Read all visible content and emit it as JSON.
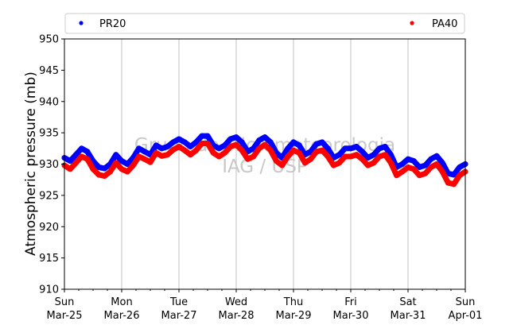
{
  "chart_data": {
    "type": "scatter",
    "xlabel": "",
    "ylabel": "Atmospheric pressure (mb)",
    "ylim": [
      910,
      950
    ],
    "y_ticks": [
      910,
      915,
      920,
      925,
      930,
      935,
      940,
      945,
      950
    ],
    "xlim": [
      0,
      7
    ],
    "x_ticks": [
      {
        "day": "Sun",
        "date": "Mar-25"
      },
      {
        "day": "Mon",
        "date": "Mar-26"
      },
      {
        "day": "Tue",
        "date": "Mar-27"
      },
      {
        "day": "Wed",
        "date": "Mar-28"
      },
      {
        "day": "Thu",
        "date": "Mar-29"
      },
      {
        "day": "Fri",
        "date": "Mar-30"
      },
      {
        "day": "Sat",
        "date": "Mar-31"
      },
      {
        "day": "Sun",
        "date": "Apr-01"
      }
    ],
    "grid": "vertical",
    "legend_position": "top",
    "watermark": [
      "Grupo de Micrometeorologia",
      "IAG / USP"
    ],
    "series": [
      {
        "name": "PR20",
        "color": "#0000ff",
        "x": [
          0.0,
          0.1,
          0.2,
          0.3,
          0.4,
          0.5,
          0.6,
          0.7,
          0.8,
          0.9,
          1.0,
          1.1,
          1.2,
          1.3,
          1.4,
          1.5,
          1.6,
          1.7,
          1.8,
          1.9,
          2.0,
          2.1,
          2.2,
          2.3,
          2.4,
          2.5,
          2.6,
          2.7,
          2.8,
          2.9,
          3.0,
          3.1,
          3.2,
          3.3,
          3.4,
          3.5,
          3.6,
          3.7,
          3.8,
          3.9,
          4.0,
          4.1,
          4.2,
          4.3,
          4.4,
          4.5,
          4.6,
          4.7,
          4.8,
          4.9,
          5.0,
          5.1,
          5.2,
          5.3,
          5.4,
          5.5,
          5.6,
          5.7,
          5.8,
          5.9,
          6.0,
          6.1,
          6.2,
          6.3,
          6.4,
          6.5,
          6.6,
          6.7,
          6.8,
          6.9,
          7.0
        ],
        "values": [
          931.0,
          930.5,
          931.5,
          932.5,
          932.0,
          930.5,
          929.5,
          929.3,
          930.0,
          931.5,
          930.5,
          930.0,
          931.0,
          932.5,
          932.0,
          931.5,
          933.0,
          932.5,
          932.8,
          933.5,
          934.0,
          933.5,
          932.8,
          933.5,
          934.5,
          934.5,
          933.0,
          932.5,
          933.0,
          934.0,
          934.3,
          933.5,
          932.0,
          932.5,
          933.8,
          934.3,
          933.5,
          931.8,
          931.0,
          932.5,
          933.5,
          933.0,
          931.5,
          932.0,
          933.2,
          933.5,
          932.5,
          931.0,
          931.5,
          932.5,
          932.5,
          932.8,
          932.0,
          931.0,
          931.5,
          932.5,
          932.8,
          931.5,
          929.5,
          930.0,
          930.8,
          930.5,
          929.5,
          929.8,
          930.8,
          931.3,
          930.2,
          928.5,
          928.3,
          929.5,
          930.0
        ]
      },
      {
        "name": "PA40",
        "color": "#ff0000",
        "x": [
          0.0,
          0.1,
          0.2,
          0.3,
          0.4,
          0.5,
          0.6,
          0.7,
          0.8,
          0.9,
          1.0,
          1.1,
          1.2,
          1.3,
          1.4,
          1.5,
          1.6,
          1.7,
          1.8,
          1.9,
          2.0,
          2.1,
          2.2,
          2.3,
          2.4,
          2.5,
          2.6,
          2.7,
          2.8,
          2.9,
          3.0,
          3.1,
          3.2,
          3.3,
          3.4,
          3.5,
          3.6,
          3.7,
          3.8,
          3.9,
          4.0,
          4.1,
          4.2,
          4.3,
          4.4,
          4.5,
          4.6,
          4.7,
          4.8,
          4.9,
          5.0,
          5.1,
          5.2,
          5.3,
          5.4,
          5.5,
          5.6,
          5.7,
          5.8,
          5.9,
          6.0,
          6.1,
          6.2,
          6.3,
          6.4,
          6.5,
          6.6,
          6.7,
          6.8,
          6.9,
          7.0
        ],
        "values": [
          929.8,
          929.2,
          930.2,
          931.2,
          930.8,
          929.2,
          928.3,
          928.1,
          928.8,
          930.2,
          929.2,
          928.8,
          929.8,
          931.2,
          930.8,
          930.3,
          931.8,
          931.3,
          931.5,
          932.3,
          932.8,
          932.2,
          931.5,
          932.2,
          933.3,
          933.3,
          931.8,
          931.2,
          931.8,
          932.8,
          933.1,
          932.2,
          930.8,
          931.2,
          932.5,
          933.1,
          932.2,
          930.5,
          929.8,
          931.2,
          932.2,
          931.8,
          930.2,
          930.8,
          932.0,
          932.2,
          931.2,
          929.8,
          930.2,
          931.2,
          931.2,
          931.5,
          930.8,
          929.8,
          930.2,
          931.2,
          931.5,
          930.2,
          928.2,
          928.8,
          929.5,
          929.2,
          928.2,
          928.5,
          929.5,
          930.0,
          928.8,
          927.0,
          926.8,
          928.2,
          928.8
        ]
      }
    ]
  }
}
